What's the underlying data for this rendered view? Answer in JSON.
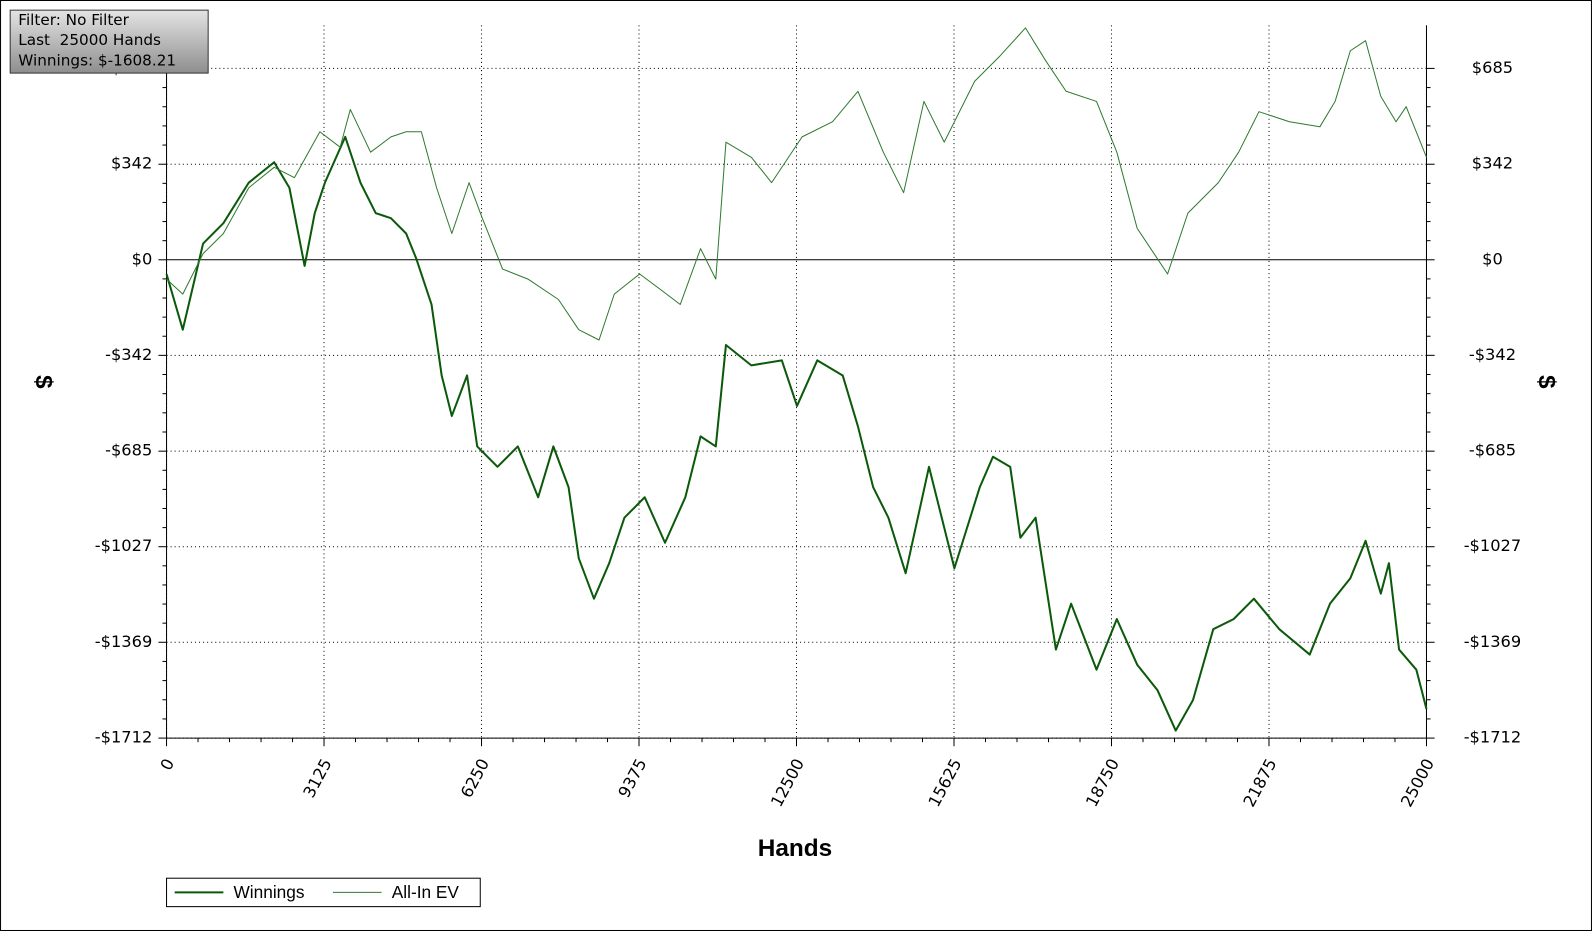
{
  "info": {
    "filter": "Filter: No Filter",
    "hands": "Last  25000 Hands",
    "winnings": "Winnings: $-1608.21"
  },
  "chart_data": {
    "type": "line",
    "xlabel": "Hands",
    "ylabel": "$",
    "y2label": "$",
    "xlim": [
      0,
      25000
    ],
    "xticks": [
      0,
      3125,
      6250,
      9375,
      12500,
      15625,
      18750,
      21875,
      25000
    ],
    "ylim": [
      -1712,
      839
    ],
    "yticks": [
      {
        "value": -1712,
        "label": "-$1712"
      },
      {
        "value": -1369,
        "label": "-$1369"
      },
      {
        "value": -1027,
        "label": "-$1027"
      },
      {
        "value": -685,
        "label": "-$685"
      },
      {
        "value": -342,
        "label": "-$342"
      },
      {
        "value": 0,
        "label": "$0"
      },
      {
        "value": 342,
        "label": "$342"
      },
      {
        "value": 685,
        "label": "$685"
      }
    ],
    "y2lim": [
      -1712,
      839
    ],
    "y2ticks": [
      {
        "value": -1712,
        "label": "-$1712"
      },
      {
        "value": -1369,
        "label": "-$1369"
      },
      {
        "value": -1027,
        "label": "-$1027"
      },
      {
        "value": -685,
        "label": "-$685"
      },
      {
        "value": -342,
        "label": "-$342"
      },
      {
        "value": 0,
        "label": "$0"
      },
      {
        "value": 342,
        "label": "$342"
      },
      {
        "value": 685,
        "label": "$685"
      }
    ],
    "grid": true,
    "legend": "bottom-left",
    "series": [
      {
        "name": "Winnings",
        "color": "#0b5a0b",
        "x": [
          0,
          322,
          725,
          1128,
          1632,
          2135,
          2438,
          2740,
          2941,
          3143,
          3546,
          3848,
          4150,
          4452,
          4754,
          4956,
          5258,
          5459,
          5661,
          5963,
          6164,
          6567,
          6970,
          7373,
          7675,
          7977,
          8179,
          8481,
          8783,
          9085,
          9488,
          9891,
          10294,
          10596,
          10898,
          11100,
          11604,
          12208,
          12510,
          12913,
          13416,
          13718,
          14021,
          14323,
          14666,
          15129,
          15633,
          16136,
          16398,
          16740,
          16942,
          17244,
          17647,
          17949,
          18453,
          18856,
          19259,
          19662,
          20024,
          20367,
          20770,
          21172,
          21575,
          22079,
          22683,
          23086,
          23489,
          23791,
          24093,
          24255,
          24456,
          24798,
          25000
        ],
        "values": [
          -51,
          -250,
          58,
          131,
          276,
          349,
          258,
          -22,
          167,
          276,
          440,
          276,
          167,
          149,
          94,
          4,
          -160,
          -414,
          -559,
          -414,
          -668,
          -741,
          -668,
          -850,
          -668,
          -814,
          -1068,
          -1213,
          -1086,
          -923,
          -850,
          -1013,
          -850,
          -632,
          -668,
          -305,
          -378,
          -360,
          -523,
          -360,
          -414,
          -596,
          -814,
          -923,
          -1122,
          -741,
          -1104,
          -814,
          -705,
          -741,
          -995,
          -923,
          -1395,
          -1231,
          -1467,
          -1286,
          -1449,
          -1540,
          -1685,
          -1576,
          -1322,
          -1286,
          -1213,
          -1322,
          -1413,
          -1231,
          -1140,
          -1006,
          -1195,
          -1086,
          -1395,
          -1467,
          -1608
        ]
      },
      {
        "name": "All-In EV",
        "color": "#2f7a2f",
        "x": [
          0,
          322,
          725,
          1128,
          1632,
          2135,
          2538,
          3042,
          3445,
          3646,
          4049,
          4452,
          4754,
          5056,
          5359,
          5661,
          6003,
          6265,
          6668,
          7172,
          7776,
          8179,
          8582,
          8884,
          9388,
          9790,
          10193,
          10596,
          10898,
          11100,
          11604,
          12006,
          12611,
          13215,
          13719,
          14222,
          14625,
          15028,
          15431,
          16035,
          16539,
          17043,
          17446,
          17849,
          18453,
          18856,
          19259,
          19863,
          20266,
          20870,
          21273,
          21676,
          22280,
          22885,
          23187,
          23489,
          23791,
          24093,
          24396,
          24597,
          25000
        ],
        "values": [
          -69,
          -123,
          22,
          94,
          258,
          331,
          294,
          458,
          403,
          538,
          385,
          440,
          458,
          458,
          258,
          94,
          276,
          149,
          -33,
          -69,
          -142,
          -250,
          -287,
          -123,
          -51,
          -105,
          -160,
          40,
          -69,
          421,
          367,
          276,
          440,
          494,
          603,
          385,
          240,
          567,
          421,
          639,
          730,
          830,
          712,
          603,
          567,
          385,
          113,
          -51,
          167,
          276,
          385,
          530,
          494,
          476,
          567,
          748,
          784,
          585,
          494,
          548,
          367
        ]
      }
    ]
  }
}
